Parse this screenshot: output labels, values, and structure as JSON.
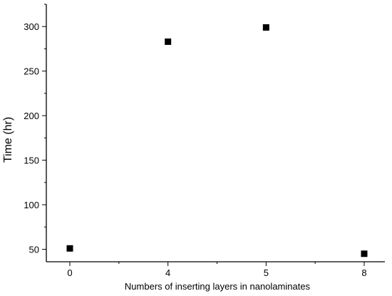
{
  "chart_data": {
    "type": "scatter",
    "title": "",
    "xlabel": "Numbers of inserting layers in nanolaminates",
    "ylabel": "Time (hr)",
    "categories": [
      "0",
      "4",
      "5",
      "8"
    ],
    "x_minor_ticks": 3,
    "ylim": [
      36,
      325
    ],
    "yticks": [
      50,
      100,
      150,
      200,
      250,
      300
    ],
    "y_minor_step": 25,
    "grid": false,
    "legend": "none",
    "marker": "square",
    "marker_color": "#000000",
    "series": [
      {
        "values": [
          51,
          283,
          299,
          45
        ]
      }
    ]
  }
}
